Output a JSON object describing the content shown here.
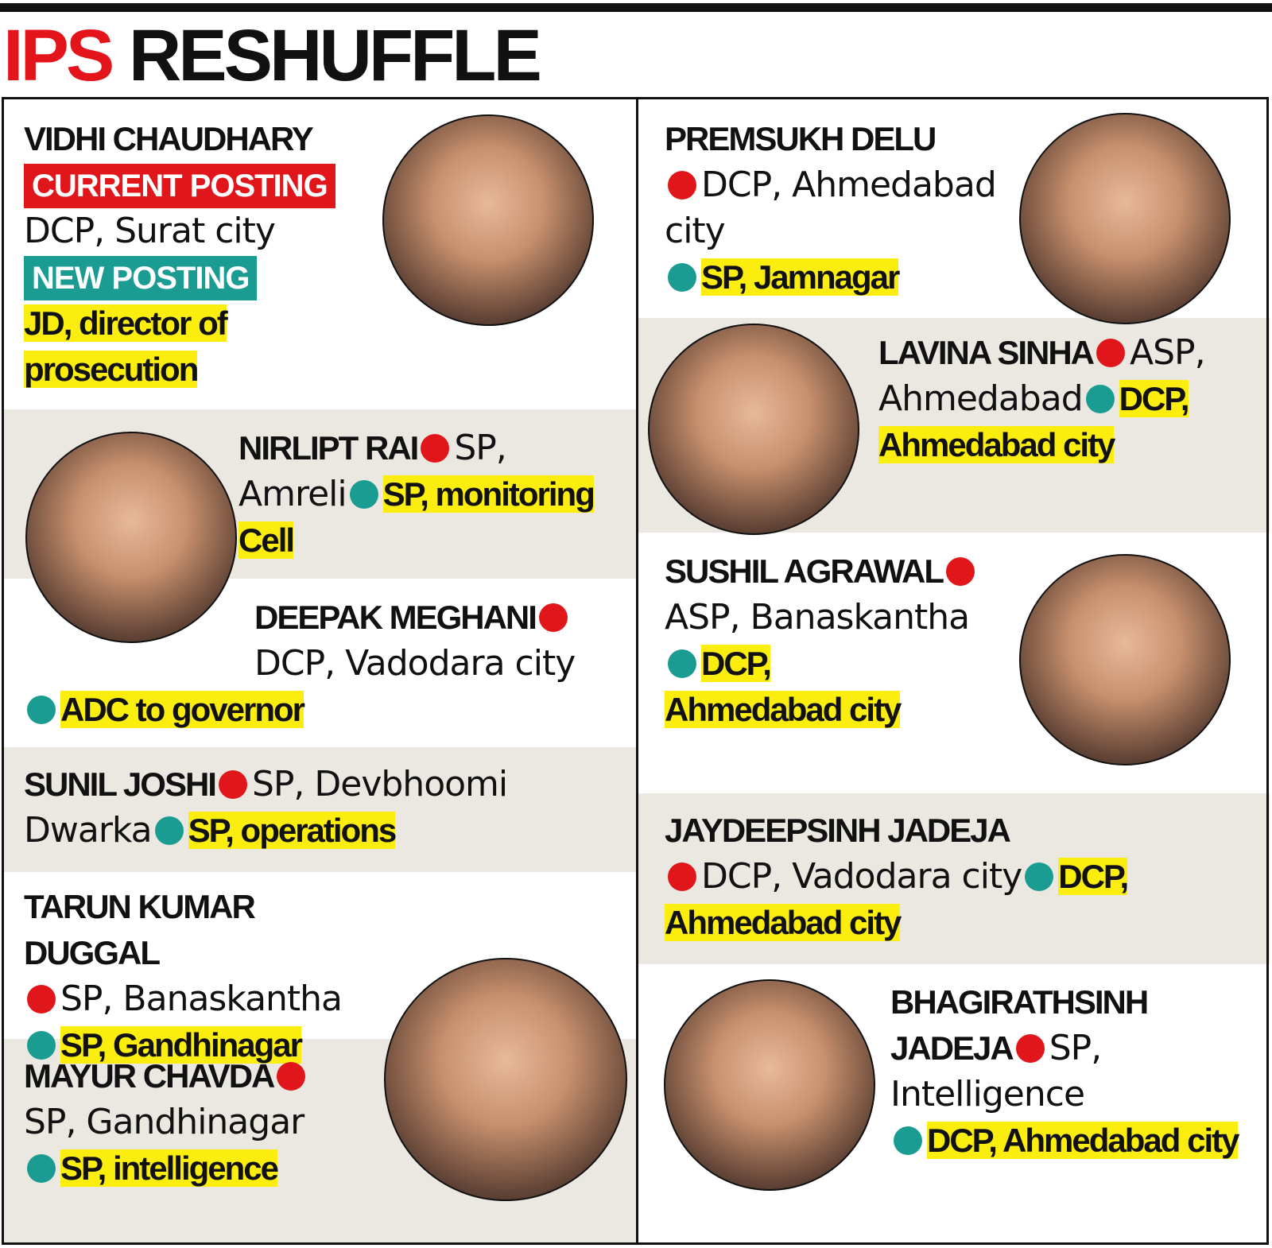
{
  "header": {
    "title_red": "IPS",
    "title_black": "RESHUFFLE"
  },
  "legend": {
    "current": "CURRENT POSTING",
    "new": "NEW POSTING"
  },
  "officers": [
    {
      "name": "VIDHI CHAUDHARY",
      "from": "DCP, Surat city",
      "to": "JD, director of prosecution"
    },
    {
      "name": "NIRLIPT RAI",
      "from": "SP, Amreli",
      "to": "SP, monitoring Cell"
    },
    {
      "name": "DEEPAK MEGHANI",
      "from": "DCP, Vadodara city",
      "to": "ADC to governor"
    },
    {
      "name": "SUNIL JOSHI",
      "from": "SP, Devbhoomi Dwarka",
      "to": "SP, operations"
    },
    {
      "name": "TARUN KUMAR DUGGAL",
      "from": "SP, Banaskantha",
      "to": "SP, Gandhinagar"
    },
    {
      "name": "MAYUR CHAVDA",
      "from": "SP, Gandhinagar",
      "to": "SP, intelligence"
    },
    {
      "name": "PREMSUKH DELU",
      "from": "DCP, Ahmedabad city",
      "to": "SP, Jamnagar"
    },
    {
      "name": "LAVINA SINHA",
      "from": "ASP, Ahmedabad",
      "to": "DCP, Ahmedabad city"
    },
    {
      "name": "SUSHIL AGRAWAL",
      "from": "ASP, Banaskantha",
      "to": "DCP, Ahmedabad city"
    },
    {
      "name": "JAYDEEPSINH JADEJA",
      "from": "DCP, Vadodara city",
      "to": "DCP, Ahmedabad city"
    },
    {
      "name": "BHAGIRATHSINH JADEJA",
      "from": "SP, Intelligence",
      "to": "DCP, Ahmedabad city"
    }
  ]
}
